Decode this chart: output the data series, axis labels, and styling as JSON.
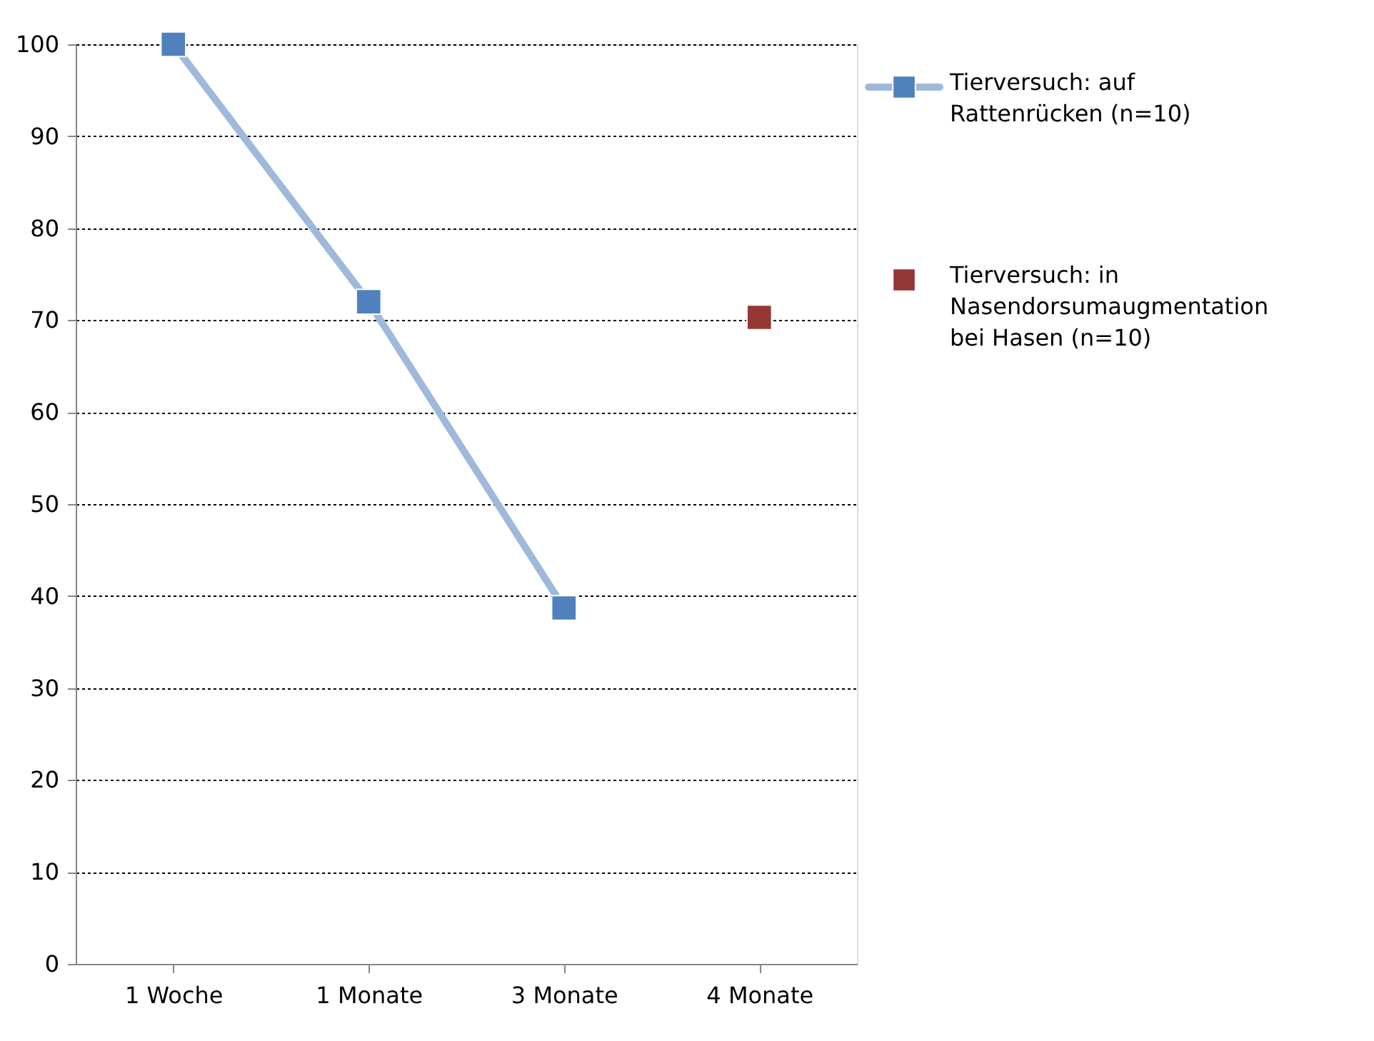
{
  "chart_data": {
    "type": "line",
    "categories": [
      "1 Woche",
      "1 Monate",
      "3 Monate",
      "4 Monate"
    ],
    "series": [
      {
        "name": "Tierversuch: auf Rattenrücken (n=10)",
        "color": "#4f81bd",
        "values": [
          100,
          72,
          38.7,
          null
        ]
      },
      {
        "name": "Tierversuch: in Nasendorsumaugmentation bei Hasen (n=10)",
        "type": "scatter",
        "color": "#953735",
        "values": [
          null,
          null,
          null,
          70.3
        ]
      }
    ],
    "ylim": [
      0,
      100
    ],
    "yticks": [
      0,
      10,
      20,
      30,
      40,
      50,
      60,
      70,
      80,
      90,
      100
    ],
    "grid": "y",
    "legend": "top right",
    "marker": "square"
  }
}
